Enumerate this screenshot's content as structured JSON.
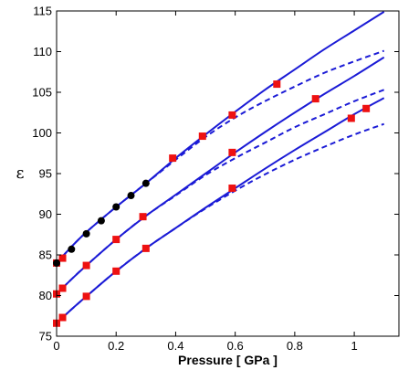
{
  "chart_data": {
    "type": "line",
    "xlabel": "Pressure [ GPa ]",
    "ylabel": "ε",
    "xlim": [
      0,
      1.15
    ],
    "ylim": [
      75,
      115
    ],
    "xticks": [
      0,
      0.2,
      0.4,
      0.6,
      0.8,
      1
    ],
    "xtick_labels": [
      "0",
      "0.2",
      "0.4",
      "0.6",
      "0.8",
      "1"
    ],
    "yticks": [
      75,
      80,
      85,
      90,
      95,
      100,
      105,
      110,
      115
    ],
    "ytick_labels": [
      "75",
      "80",
      "85",
      "90",
      "95",
      "100",
      "105",
      "110",
      "115"
    ],
    "grid": false,
    "colors": {
      "line": "#1b1bd6",
      "square": "#ee1111",
      "circle": "#000000",
      "axis": "#000000"
    },
    "series": [
      {
        "style": "solid",
        "x": [
          0,
          0.05,
          0.1,
          0.2,
          0.3,
          0.4,
          0.5,
          0.6,
          0.7,
          0.8,
          0.9,
          1.0,
          1.1
        ],
        "y": [
          84.0,
          86.0,
          87.8,
          90.9,
          93.8,
          96.9,
          99.8,
          102.6,
          105.3,
          107.8,
          110.3,
          112.6,
          114.9
        ]
      },
      {
        "style": "dashed",
        "x": [
          0,
          0.05,
          0.1,
          0.2,
          0.3,
          0.4,
          0.5,
          0.6,
          0.7,
          0.8,
          0.9,
          1.0,
          1.1
        ],
        "y": [
          84.0,
          86.0,
          87.8,
          90.9,
          93.8,
          96.7,
          99.5,
          101.9,
          103.9,
          105.7,
          107.4,
          108.8,
          110.1
        ]
      },
      {
        "style": "solid",
        "x": [
          0,
          0.05,
          0.1,
          0.2,
          0.3,
          0.4,
          0.5,
          0.6,
          0.7,
          0.8,
          0.9,
          1.0,
          1.1
        ],
        "y": [
          80.2,
          82.0,
          83.7,
          86.9,
          89.8,
          92.4,
          95.0,
          97.6,
          100.1,
          102.5,
          104.8,
          107.0,
          109.3
        ]
      },
      {
        "style": "dashed",
        "x": [
          0,
          0.05,
          0.1,
          0.2,
          0.3,
          0.4,
          0.5,
          0.6,
          0.7,
          0.8,
          0.9,
          1.0,
          1.1
        ],
        "y": [
          80.2,
          82.0,
          83.7,
          86.9,
          89.8,
          92.3,
          94.8,
          96.9,
          98.8,
          100.7,
          102.3,
          103.9,
          105.3
        ]
      },
      {
        "style": "solid",
        "x": [
          0,
          0.05,
          0.1,
          0.2,
          0.3,
          0.4,
          0.5,
          0.6,
          0.7,
          0.8,
          0.9,
          1.0,
          1.1
        ],
        "y": [
          76.6,
          78.3,
          79.9,
          83.0,
          85.8,
          88.3,
          90.8,
          93.2,
          95.6,
          97.9,
          100.1,
          102.3,
          104.3
        ]
      },
      {
        "style": "dashed",
        "x": [
          0,
          0.05,
          0.1,
          0.2,
          0.3,
          0.4,
          0.5,
          0.6,
          0.7,
          0.8,
          0.9,
          1.0,
          1.1
        ],
        "y": [
          76.6,
          78.3,
          79.9,
          83.0,
          85.8,
          88.3,
          90.7,
          92.9,
          94.9,
          96.7,
          98.3,
          99.8,
          101.1
        ]
      }
    ],
    "markers_square": {
      "x": [
        0,
        0.02,
        0.39,
        0.49,
        0.59,
        0.74,
        0,
        0.02,
        0.1,
        0.2,
        0.29,
        0.59,
        0.87,
        0,
        0.02,
        0.1,
        0.2,
        0.3,
        0.59,
        0.99,
        1.04
      ],
      "y": [
        84.0,
        84.6,
        96.9,
        99.6,
        102.2,
        106.0,
        80.2,
        80.9,
        83.7,
        86.9,
        89.7,
        97.6,
        104.2,
        76.6,
        77.3,
        79.9,
        83.0,
        85.8,
        93.2,
        101.8,
        103.0
      ]
    },
    "markers_circle": {
      "x": [
        0,
        0.05,
        0.1,
        0.15,
        0.2,
        0.25,
        0.3
      ],
      "y": [
        84.0,
        85.7,
        87.6,
        89.2,
        90.9,
        92.3,
        93.8
      ]
    }
  }
}
